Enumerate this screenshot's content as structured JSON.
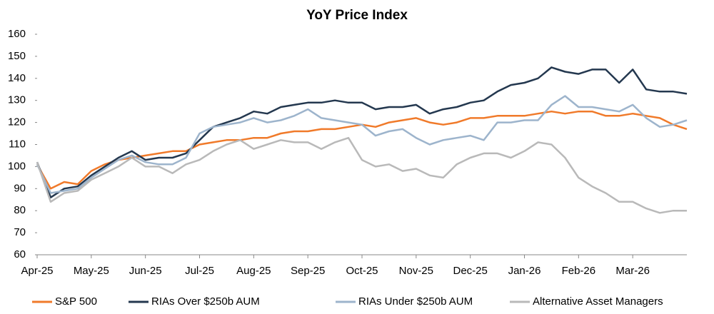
{
  "chart_data": {
    "type": "line",
    "title": "YoY Price Index",
    "categories": [
      "Apr-25",
      null,
      null,
      null,
      "May-25",
      null,
      null,
      null,
      "Jun-25",
      null,
      null,
      null,
      "Jul-25",
      null,
      null,
      null,
      "Aug-25",
      null,
      null,
      null,
      "Sep-25",
      null,
      null,
      null,
      "Oct-25",
      null,
      null,
      null,
      "Nov-25",
      null,
      null,
      null,
      "Dec-25",
      null,
      null,
      null,
      "Jan-26",
      null,
      null,
      null,
      "Feb-26",
      null,
      null,
      null,
      "Mar-26",
      null,
      null,
      null,
      null
    ],
    "series": [
      {
        "name": "S&P 500",
        "color": "#f07a2a",
        "values": [
          101,
          90,
          93,
          92,
          98,
          101,
          103,
          104,
          105,
          106,
          107,
          107,
          110,
          111,
          112,
          112,
          113,
          113,
          115,
          116,
          116,
          117,
          117,
          118,
          119,
          118,
          120,
          121,
          122,
          120,
          119,
          120,
          122,
          122,
          123,
          123,
          123,
          124,
          125,
          124,
          125,
          125,
          123,
          123,
          124,
          123,
          122,
          119,
          117
        ]
      },
      {
        "name": "RIAs Over $250b AUM",
        "color": "#24384f",
        "values": [
          102,
          86,
          90,
          91,
          96,
          100,
          104,
          107,
          103,
          104,
          104,
          106,
          112,
          118,
          120,
          122,
          125,
          124,
          127,
          128,
          129,
          129,
          130,
          129,
          129,
          126,
          127,
          127,
          128,
          124,
          126,
          127,
          129,
          130,
          134,
          137,
          138,
          140,
          145,
          143,
          142,
          144,
          144,
          138,
          144,
          135,
          134,
          134,
          133
        ]
      },
      {
        "name": "RIAs Under $250b AUM",
        "color": "#9db4cc",
        "values": [
          101,
          88,
          89,
          90,
          95,
          99,
          103,
          105,
          102,
          101,
          101,
          104,
          115,
          118,
          119,
          120,
          122,
          120,
          121,
          123,
          126,
          122,
          121,
          120,
          119,
          114,
          116,
          117,
          113,
          110,
          112,
          113,
          114,
          112,
          120,
          120,
          121,
          121,
          128,
          132,
          127,
          127,
          126,
          125,
          128,
          122,
          118,
          119,
          121
        ]
      },
      {
        "name": "Alternative Asset Managers",
        "color": "#b9b9b9",
        "values": [
          102,
          84,
          88,
          89,
          94,
          97,
          100,
          104,
          100,
          100,
          97,
          101,
          103,
          107,
          110,
          112,
          108,
          110,
          112,
          111,
          111,
          108,
          111,
          113,
          103,
          100,
          101,
          98,
          99,
          96,
          95,
          101,
          104,
          106,
          106,
          104,
          107,
          111,
          110,
          104,
          95,
          91,
          88,
          84,
          84,
          81,
          79,
          80,
          80
        ]
      }
    ],
    "ylim": [
      60,
      160
    ],
    "yticks": [
      60,
      70,
      80,
      90,
      100,
      110,
      120,
      130,
      140,
      150,
      160
    ]
  }
}
